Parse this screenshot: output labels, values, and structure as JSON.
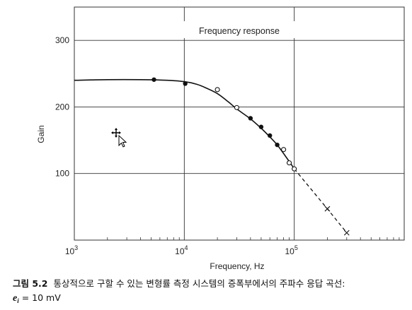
{
  "chart_data": {
    "type": "line",
    "title": "Frequency response",
    "xlabel": "Frequency, Hz",
    "ylabel": "Gain",
    "x_scale": "log",
    "xlim": [
      1000,
      1000000
    ],
    "ylim": [
      0,
      350
    ],
    "x_ticks": [
      {
        "value": 1000,
        "base": "10",
        "exp": "3"
      },
      {
        "value": 10000,
        "base": "10",
        "exp": "4"
      },
      {
        "value": 100000,
        "base": "10",
        "exp": "5"
      }
    ],
    "y_ticks": [
      {
        "value": 100,
        "label": "100"
      },
      {
        "value": 200,
        "label": "200"
      },
      {
        "value": 300,
        "label": "300"
      }
    ],
    "grid": true,
    "fitted_curve": {
      "style": "solid",
      "points": [
        [
          1000,
          240
        ],
        [
          2000,
          241
        ],
        [
          4000,
          241
        ],
        [
          7000,
          240
        ],
        [
          10000,
          238
        ],
        [
          13000,
          234
        ],
        [
          16000,
          228
        ],
        [
          20000,
          220
        ],
        [
          25000,
          208
        ],
        [
          30000,
          197
        ],
        [
          40000,
          182
        ],
        [
          50000,
          168
        ],
        [
          60000,
          155
        ],
        [
          70000,
          143
        ],
        [
          80000,
          130
        ],
        [
          90000,
          118
        ],
        [
          100000,
          107
        ]
      ]
    },
    "extrapolated_curve": {
      "style": "dashed",
      "points": [
        [
          100000,
          107
        ],
        [
          200000,
          47
        ],
        [
          300000,
          11
        ]
      ]
    },
    "series": [
      {
        "marker": "filled-circle",
        "points": [
          [
            5300,
            241
          ],
          [
            10200,
            235
          ],
          [
            40000,
            183
          ],
          [
            50000,
            170
          ],
          [
            60000,
            157
          ],
          [
            70000,
            143
          ]
        ]
      },
      {
        "marker": "open-circle",
        "points": [
          [
            20000,
            226
          ],
          [
            30000,
            199
          ],
          [
            80000,
            136
          ],
          [
            90000,
            116
          ],
          [
            100000,
            107
          ]
        ]
      },
      {
        "marker": "cross",
        "points": [
          [
            200000,
            47
          ],
          [
            300000,
            11
          ]
        ]
      }
    ]
  },
  "caption": {
    "figure_number": "그림 5.2",
    "text": "통상적으로 구할 수 있는 변형률 측정 시스템의 증폭부에서의 주파수 응답 곡선:",
    "eq_var": "e",
    "eq_sub": "i",
    "eq_rest": " = 10 mV"
  },
  "colors": {
    "ink": "#111111",
    "grid": "#333333",
    "background": "#ffffff"
  },
  "cursor_icon": "move-pointer-icon"
}
